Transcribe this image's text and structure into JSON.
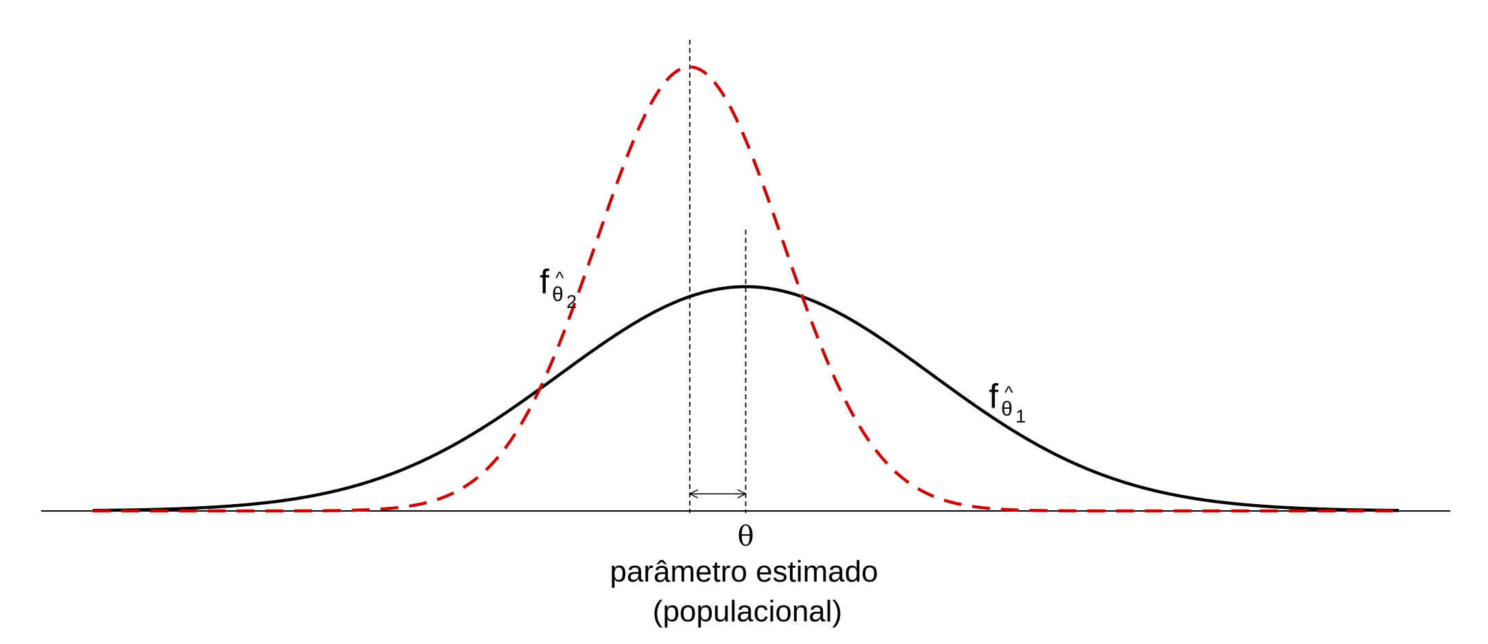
{
  "labels": {
    "theta": "θ",
    "caption_line1": "parâmetro estimado",
    "caption_line2": "(populacional)",
    "curve1_f": "f",
    "curve1_theta": "θ",
    "curve1_hat": "^",
    "curve1_sub": "1",
    "curve2_f": "f",
    "curve2_theta": "θ",
    "curve2_hat": "^",
    "curve2_sub": "2"
  },
  "colors": {
    "curve1": "#000000",
    "curve2": "#cc0000",
    "axis": "#000000",
    "guide": "#000000"
  },
  "model": {
    "x_range": [
      -7,
      7
    ],
    "curve1": {
      "mean": 0,
      "sd": 2,
      "peak": 1.0,
      "style": "solid"
    },
    "curve2": {
      "mean": -0.6,
      "sd": 1,
      "peak": 1.98,
      "style": "dashed"
    },
    "bias_arrow": {
      "from": -0.6,
      "to": 0
    }
  }
}
